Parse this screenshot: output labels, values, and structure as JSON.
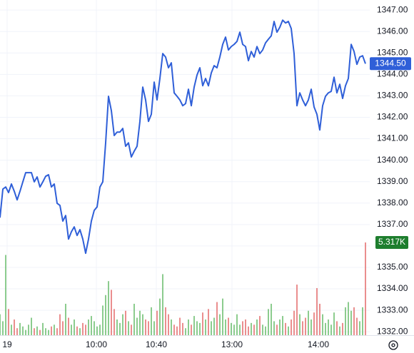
{
  "chart_data": {
    "type": "line",
    "x": [
      0,
      1,
      2,
      3,
      4,
      5,
      6,
      7,
      8,
      9,
      10,
      11,
      12,
      13,
      14,
      15,
      16,
      17,
      18,
      19,
      20,
      21,
      22,
      23,
      24,
      25,
      26,
      27,
      28,
      29,
      30,
      31,
      32,
      33,
      34,
      35,
      36,
      37,
      38,
      39,
      40,
      41,
      42,
      43,
      44,
      45,
      46,
      47,
      48,
      49,
      50,
      51,
      52,
      53,
      54,
      55,
      56,
      57,
      58,
      59,
      60,
      61,
      62,
      63,
      64,
      65,
      66,
      67,
      68,
      69,
      70,
      71,
      72,
      73,
      74,
      75,
      76,
      77,
      78,
      79,
      80,
      81,
      82,
      83,
      84,
      85,
      86,
      87,
      88,
      89,
      90,
      91,
      92,
      93,
      94,
      95,
      96,
      97,
      98,
      99,
      100,
      101,
      102,
      103,
      104,
      105,
      106,
      107,
      108,
      109,
      110,
      111,
      112,
      113,
      114,
      115,
      116,
      117,
      118,
      119,
      120,
      121,
      122,
      123,
      124,
      125,
      126,
      127,
      128
    ],
    "xlim": [
      0,
      128
    ],
    "xticks": [
      {
        "value": 2.5,
        "label": "19"
      },
      {
        "value": 33.75,
        "label": "10:00"
      },
      {
        "value": 54.75,
        "label": "10:40"
      },
      {
        "value": 81.25,
        "label": "13:00"
      },
      {
        "value": 111.5,
        "label": "14:00"
      }
    ],
    "ylim": [
      1331.84,
      1347.47
    ],
    "yticks": [
      {
        "value": 1332,
        "label": "1332.00"
      },
      {
        "value": 1333,
        "label": "1333.00"
      },
      {
        "value": 1334,
        "label": "1334.00"
      },
      {
        "value": 1335,
        "label": "1335.00"
      },
      {
        "value": 1336,
        "label": "1336.00"
      },
      {
        "value": 1337,
        "label": "1337.00"
      },
      {
        "value": 1338,
        "label": "1338.00"
      },
      {
        "value": 1339,
        "label": "1339.00"
      },
      {
        "value": 1340,
        "label": "1340.00"
      },
      {
        "value": 1341,
        "label": "1341.00"
      },
      {
        "value": 1342,
        "label": "1342.00"
      },
      {
        "value": 1343,
        "label": "1343.00"
      },
      {
        "value": 1344,
        "label": "1344.00"
      },
      {
        "value": 1345,
        "label": "1345.00"
      },
      {
        "value": 1346,
        "label": "1346.00"
      },
      {
        "value": 1347,
        "label": "1347.00"
      }
    ],
    "y2lim": [
      0,
      19.22
    ],
    "grid": true,
    "series": [
      {
        "color": "#2f5fd8",
        "last_label": "1344.50",
        "values": [
          1337.32,
          1338.65,
          1338.75,
          1338.49,
          1338.89,
          1338.55,
          1338.15,
          1338.55,
          1338.99,
          1339.42,
          1339.42,
          1339.42,
          1338.99,
          1339.22,
          1338.75,
          1338.99,
          1339.25,
          1339.32,
          1338.75,
          1338.89,
          1337.99,
          1337.89,
          1337.16,
          1337.42,
          1336.32,
          1336.66,
          1336.89,
          1336.49,
          1336.76,
          1336.32,
          1335.66,
          1336.32,
          1337.16,
          1337.66,
          1337.82,
          1338.75,
          1338.99,
          1340.81,
          1342.98,
          1342.31,
          1341.15,
          1341.31,
          1341.31,
          1341.48,
          1340.65,
          1340.81,
          1340.15,
          1340.42,
          1340.65,
          1341.81,
          1343.41,
          1342.81,
          1341.81,
          1342.14,
          1343.64,
          1342.81,
          1343.81,
          1344.97,
          1344.81,
          1344.31,
          1344.54,
          1343.14,
          1342.98,
          1342.81,
          1342.54,
          1342.64,
          1343.31,
          1342.54,
          1343.41,
          1343.97,
          1344.31,
          1343.47,
          1343.81,
          1343.47,
          1344.07,
          1344.41,
          1344.31,
          1344.81,
          1345.4,
          1345.74,
          1345.14,
          1345.3,
          1345.4,
          1345.54,
          1345.97,
          1345.4,
          1345.3,
          1344.64,
          1345.07,
          1344.81,
          1345.3,
          1344.97,
          1345.14,
          1345.47,
          1345.64,
          1345.8,
          1346.47,
          1345.97,
          1346.2,
          1346.53,
          1346.4,
          1346.47,
          1346.14,
          1344.97,
          1342.54,
          1343.14,
          1342.81,
          1342.54,
          1342.81,
          1343.31,
          1342.48,
          1342.14,
          1341.41,
          1342.54,
          1342.98,
          1343.14,
          1343.21,
          1343.87,
          1343.14,
          1343.54,
          1342.88,
          1343.47,
          1343.81,
          1345.4,
          1345.07,
          1344.47,
          1344.81,
          1344.87,
          1344.5
        ]
      },
      {
        "type": "bar",
        "axis": "y2",
        "up_color": "#6fbf73",
        "down_color": "#e57373",
        "last_label": "5.317K",
        "values": [
          1.2,
          0.8,
          4.6,
          1.5,
          0.6,
          0.9,
          0.4,
          0.7,
          0.5,
          0.3,
          0.6,
          1.0,
          0.4,
          0.5,
          0.3,
          0.7,
          0.4,
          0.3,
          0.5,
          0.6,
          0.4,
          1.2,
          0.8,
          1.8,
          1.0,
          0.6,
          0.9,
          0.5,
          0.4,
          0.7,
          0.6,
          0.9,
          1.1,
          0.8,
          0.5,
          0.6,
          1.7,
          2.3,
          3.1,
          2.6,
          1.5,
          0.9,
          0.7,
          1.2,
          1.4,
          0.8,
          0.6,
          1.8,
          1.0,
          1.4,
          1.2,
          0.9,
          0.8,
          1.6,
          0.8,
          1.4,
          2.1,
          3.5,
          1.6,
          1.2,
          0.9,
          0.6,
          0.5,
          1.0,
          0.7,
          0.4,
          0.9,
          0.6,
          1.1,
          0.8,
          0.7,
          1.3,
          0.9,
          1.5,
          0.8,
          1.0,
          1.9,
          1.2,
          2.1,
          0.9,
          1.0,
          0.7,
          0.6,
          1.2,
          0.6,
          0.8,
          0.9,
          0.5,
          0.7,
          0.6,
          0.9,
          1.1,
          0.6,
          0.5,
          1.5,
          1.8,
          0.8,
          0.6,
          0.9,
          1.1,
          0.7,
          0.5,
          0.9,
          1.4,
          2.9,
          1.2,
          0.8,
          1.0,
          1.4,
          0.9,
          1.3,
          2.7,
          1.8,
          1.2,
          0.7,
          0.9,
          0.6,
          1.3,
          0.8,
          0.5,
          0.7,
          1.6,
          1.9,
          1.4,
          1.6,
          1.0,
          0.8,
          1.6,
          5.317
        ]
      }
    ]
  }
}
